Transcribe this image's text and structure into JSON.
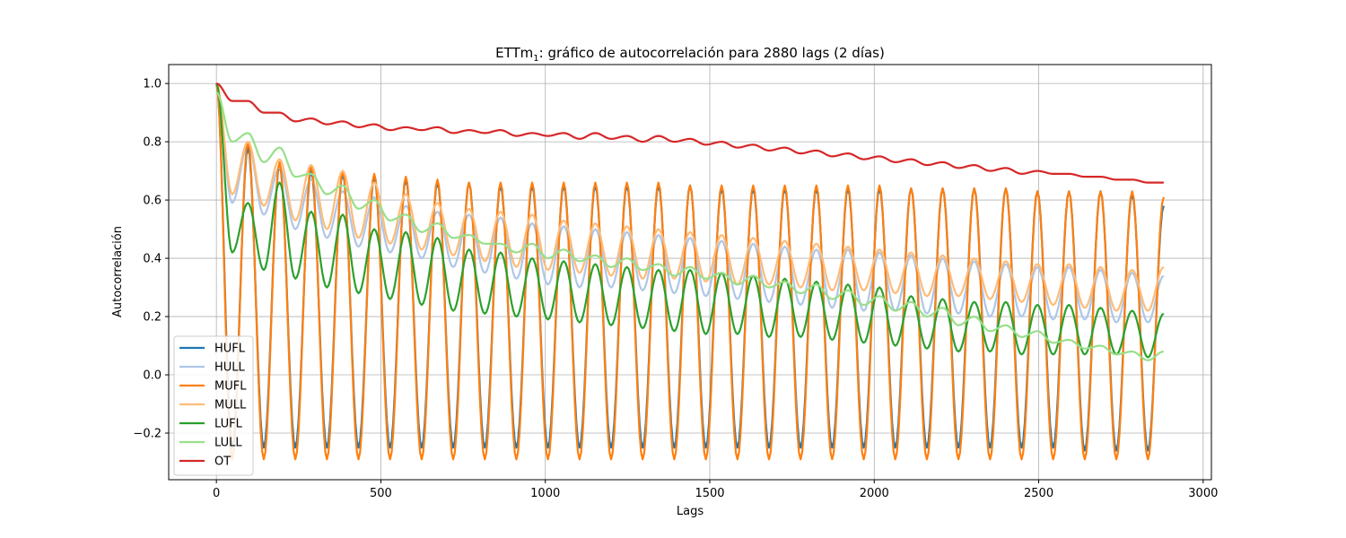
{
  "chart_data": {
    "type": "line",
    "title": "ETTm₁: gráfico de autocorrelación para 2880 lags (2 días)",
    "title_main": "ETTm",
    "title_sub": "1",
    "title_rest": ": gráfico de autocorrelación para 2880 lags (2 días)",
    "xlabel": "Lags",
    "ylabel": "Autocorrelación",
    "xlim": [
      -145,
      3025
    ],
    "ylim": [
      -0.36,
      1.065
    ],
    "xticks": [
      0,
      500,
      1000,
      1500,
      2000,
      2500,
      3000
    ],
    "xtick_labels": [
      "0",
      "500",
      "1000",
      "1500",
      "2000",
      "2500",
      "3000"
    ],
    "yticks": [
      -0.2,
      0.0,
      0.2,
      0.4,
      0.6,
      0.8,
      1.0
    ],
    "ytick_labels": [
      "−0.2",
      "0.0",
      "0.2",
      "0.4",
      "0.6",
      "0.8",
      "1.0"
    ],
    "grid": true,
    "legend_position": "lower-left",
    "period": 96,
    "x": [
      0,
      48,
      96,
      144,
      192,
      240,
      288,
      336,
      384,
      432,
      480,
      528,
      576,
      624,
      672,
      720,
      768,
      816,
      864,
      912,
      960,
      1008,
      1056,
      1104,
      1152,
      1200,
      1248,
      1296,
      1344,
      1392,
      1440,
      1488,
      1536,
      1584,
      1632,
      1680,
      1728,
      1776,
      1824,
      1872,
      1920,
      1968,
      2016,
      2064,
      2112,
      2160,
      2208,
      2256,
      2304,
      2352,
      2400,
      2448,
      2496,
      2544,
      2592,
      2640,
      2688,
      2736,
      2784,
      2832,
      2880
    ],
    "series": [
      {
        "name": "HUFL",
        "color": "#1f77b4",
        "values": [
          1.0,
          -0.25,
          0.78,
          -0.25,
          0.72,
          -0.25,
          0.7,
          -0.25,
          0.69,
          -0.25,
          0.68,
          -0.25,
          0.67,
          -0.25,
          0.66,
          -0.25,
          0.66,
          -0.25,
          0.65,
          -0.25,
          0.65,
          -0.25,
          0.65,
          -0.25,
          0.65,
          -0.25,
          0.65,
          -0.25,
          0.65,
          -0.25,
          0.65,
          -0.25,
          0.64,
          -0.25,
          0.64,
          -0.25,
          0.64,
          -0.25,
          0.64,
          -0.25,
          0.64,
          -0.25,
          0.64,
          -0.25,
          0.64,
          -0.25,
          0.64,
          -0.25,
          0.64,
          -0.25,
          0.64,
          -0.25,
          0.63,
          -0.25,
          0.63,
          -0.26,
          0.63,
          -0.26,
          0.62,
          -0.26,
          0.58
        ]
      },
      {
        "name": "HULL",
        "color": "#aec7e8",
        "values": [
          1.0,
          0.59,
          0.79,
          0.55,
          0.71,
          0.5,
          0.67,
          0.47,
          0.63,
          0.44,
          0.61,
          0.42,
          0.58,
          0.4,
          0.56,
          0.37,
          0.55,
          0.35,
          0.54,
          0.33,
          0.52,
          0.31,
          0.51,
          0.3,
          0.5,
          0.3,
          0.49,
          0.29,
          0.48,
          0.28,
          0.47,
          0.27,
          0.46,
          0.26,
          0.45,
          0.25,
          0.44,
          0.24,
          0.43,
          0.23,
          0.43,
          0.22,
          0.42,
          0.22,
          0.41,
          0.21,
          0.4,
          0.21,
          0.39,
          0.2,
          0.38,
          0.2,
          0.37,
          0.19,
          0.37,
          0.19,
          0.36,
          0.18,
          0.35,
          0.18,
          0.34
        ]
      },
      {
        "name": "MUFL",
        "color": "#ff7f0e",
        "values": [
          1.0,
          -0.29,
          0.8,
          -0.29,
          0.73,
          -0.29,
          0.72,
          -0.29,
          0.7,
          -0.29,
          0.69,
          -0.29,
          0.68,
          -0.29,
          0.67,
          -0.29,
          0.66,
          -0.29,
          0.66,
          -0.29,
          0.66,
          -0.29,
          0.66,
          -0.29,
          0.66,
          -0.29,
          0.66,
          -0.29,
          0.66,
          -0.29,
          0.65,
          -0.29,
          0.65,
          -0.29,
          0.65,
          -0.29,
          0.65,
          -0.29,
          0.65,
          -0.29,
          0.65,
          -0.29,
          0.65,
          -0.29,
          0.64,
          -0.29,
          0.64,
          -0.29,
          0.64,
          -0.29,
          0.64,
          -0.29,
          0.63,
          -0.29,
          0.63,
          -0.29,
          0.63,
          -0.29,
          0.63,
          -0.29,
          0.61
        ]
      },
      {
        "name": "MULL",
        "color": "#ffbb78",
        "values": [
          1.0,
          0.62,
          0.8,
          0.58,
          0.74,
          0.53,
          0.72,
          0.5,
          0.7,
          0.47,
          0.66,
          0.45,
          0.62,
          0.43,
          0.59,
          0.41,
          0.57,
          0.39,
          0.56,
          0.37,
          0.55,
          0.36,
          0.53,
          0.35,
          0.52,
          0.34,
          0.51,
          0.33,
          0.5,
          0.33,
          0.49,
          0.32,
          0.48,
          0.31,
          0.47,
          0.31,
          0.46,
          0.3,
          0.45,
          0.29,
          0.44,
          0.29,
          0.43,
          0.28,
          0.42,
          0.27,
          0.41,
          0.27,
          0.4,
          0.26,
          0.39,
          0.25,
          0.38,
          0.24,
          0.38,
          0.23,
          0.37,
          0.22,
          0.36,
          0.22,
          0.37
        ]
      },
      {
        "name": "LUFL",
        "color": "#2ca02c",
        "values": [
          1.0,
          0.42,
          0.59,
          0.36,
          0.66,
          0.33,
          0.56,
          0.3,
          0.55,
          0.28,
          0.5,
          0.26,
          0.49,
          0.24,
          0.47,
          0.22,
          0.43,
          0.21,
          0.42,
          0.2,
          0.4,
          0.19,
          0.39,
          0.18,
          0.38,
          0.17,
          0.37,
          0.16,
          0.36,
          0.15,
          0.36,
          0.14,
          0.35,
          0.14,
          0.34,
          0.13,
          0.33,
          0.13,
          0.32,
          0.12,
          0.31,
          0.11,
          0.3,
          0.1,
          0.27,
          0.09,
          0.26,
          0.08,
          0.25,
          0.08,
          0.25,
          0.07,
          0.24,
          0.07,
          0.24,
          0.07,
          0.23,
          0.07,
          0.22,
          0.06,
          0.21
        ]
      },
      {
        "name": "LULL",
        "color": "#98df8a",
        "values": [
          0.97,
          0.8,
          0.83,
          0.73,
          0.78,
          0.68,
          0.69,
          0.62,
          0.65,
          0.57,
          0.6,
          0.53,
          0.55,
          0.49,
          0.52,
          0.47,
          0.48,
          0.45,
          0.45,
          0.42,
          0.45,
          0.4,
          0.43,
          0.39,
          0.41,
          0.37,
          0.4,
          0.36,
          0.38,
          0.34,
          0.37,
          0.33,
          0.35,
          0.31,
          0.34,
          0.3,
          0.32,
          0.28,
          0.31,
          0.26,
          0.29,
          0.24,
          0.27,
          0.22,
          0.25,
          0.2,
          0.23,
          0.17,
          0.2,
          0.15,
          0.17,
          0.13,
          0.15,
          0.11,
          0.12,
          0.09,
          0.1,
          0.07,
          0.08,
          0.05,
          0.08
        ]
      },
      {
        "name": "OT",
        "color": "#d62728",
        "values": [
          1.0,
          0.94,
          0.94,
          0.9,
          0.9,
          0.87,
          0.88,
          0.86,
          0.87,
          0.85,
          0.86,
          0.84,
          0.85,
          0.84,
          0.85,
          0.83,
          0.84,
          0.83,
          0.84,
          0.82,
          0.83,
          0.82,
          0.83,
          0.81,
          0.83,
          0.81,
          0.82,
          0.8,
          0.82,
          0.8,
          0.81,
          0.79,
          0.8,
          0.78,
          0.79,
          0.77,
          0.78,
          0.76,
          0.77,
          0.75,
          0.76,
          0.74,
          0.75,
          0.73,
          0.74,
          0.72,
          0.73,
          0.71,
          0.72,
          0.7,
          0.71,
          0.69,
          0.7,
          0.69,
          0.69,
          0.68,
          0.68,
          0.67,
          0.67,
          0.66,
          0.66
        ]
      }
    ]
  }
}
